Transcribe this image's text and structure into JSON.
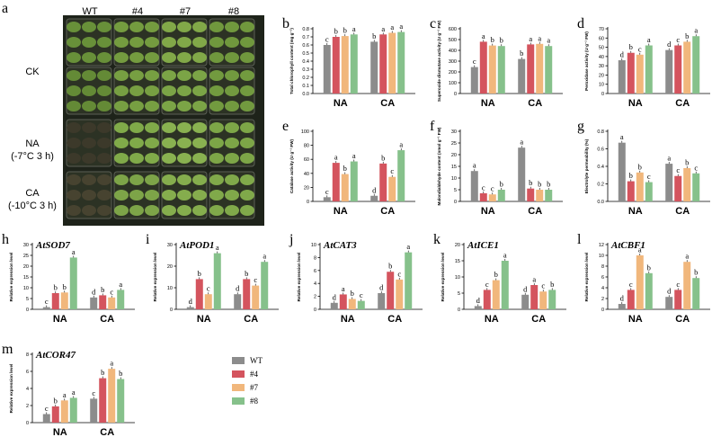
{
  "colors": {
    "WT": "#8c8c8c",
    "#4": "#d4545e",
    "#7": "#f1b77c",
    "#8": "#86c18b"
  },
  "photo": {
    "label": "a",
    "columns": [
      "WT",
      "#4",
      "#7",
      "#8"
    ],
    "rows": [
      "CK",
      "NA",
      "(-7°C 3 h)",
      "CA",
      "(-10°C 3 h)"
    ]
  },
  "legend": {
    "items": [
      {
        "name": "WT",
        "color": "#8c8c8c"
      },
      {
        "name": "#4",
        "color": "#d4545e"
      },
      {
        "name": "#7",
        "color": "#f1b77c"
      },
      {
        "name": "#8",
        "color": "#86c18b"
      }
    ]
  },
  "chart_data": [
    {
      "id": "b",
      "type": "bar",
      "ylabel": "Total chlorophyll content (mg g⁻¹)",
      "yticks": [
        0.0,
        0.1,
        0.2,
        0.3,
        0.4,
        0.5,
        0.6,
        0.7,
        0.8
      ],
      "ylim": [
        0,
        0.8
      ],
      "categories": [
        "NA",
        "CA"
      ],
      "series": [
        {
          "name": "WT",
          "values": [
            0.6,
            0.64
          ]
        },
        {
          "name": "#4",
          "values": [
            0.7,
            0.73
          ]
        },
        {
          "name": "#7",
          "values": [
            0.71,
            0.75
          ]
        },
        {
          "name": "#8",
          "values": [
            0.73,
            0.76
          ]
        }
      ],
      "sig": [
        [
          "c",
          "b",
          "b",
          "a"
        ],
        [
          "b",
          "a",
          "a",
          "a"
        ]
      ]
    },
    {
      "id": "c",
      "type": "bar",
      "ylabel": "Superoxide dismutase activity (U g⁻¹ FW)",
      "yticks": [
        0,
        100,
        200,
        300,
        400,
        500,
        600
      ],
      "ylim": [
        0,
        600
      ],
      "categories": [
        "NA",
        "CA"
      ],
      "series": [
        {
          "name": "WT",
          "values": [
            245,
            320
          ]
        },
        {
          "name": "#4",
          "values": [
            480,
            455
          ]
        },
        {
          "name": "#7",
          "values": [
            445,
            460
          ]
        },
        {
          "name": "#8",
          "values": [
            440,
            440
          ]
        }
      ],
      "sig": [
        [
          "c",
          "a",
          "b",
          "b"
        ],
        [
          "b",
          "a",
          "a",
          "a"
        ]
      ]
    },
    {
      "id": "d",
      "type": "bar",
      "ylabel": "Peroxidase activity (U g⁻¹ FW)",
      "yticks": [
        0,
        10,
        20,
        30,
        40,
        50,
        60,
        70
      ],
      "ylim": [
        0,
        70
      ],
      "categories": [
        "NA",
        "CA"
      ],
      "series": [
        {
          "name": "WT",
          "values": [
            36,
            47
          ]
        },
        {
          "name": "#4",
          "values": [
            44,
            52
          ]
        },
        {
          "name": "#7",
          "values": [
            42,
            56
          ]
        },
        {
          "name": "#8",
          "values": [
            52,
            62
          ]
        }
      ],
      "sig": [
        [
          "d",
          "b",
          "c",
          "a"
        ],
        [
          "d",
          "c",
          "b",
          "a"
        ]
      ]
    },
    {
      "id": "e",
      "type": "bar",
      "ylabel": "Catalase activity (U g⁻¹ FW)",
      "yticks": [
        0,
        20,
        40,
        60,
        80,
        100
      ],
      "ylim": [
        0,
        100
      ],
      "categories": [
        "NA",
        "CA"
      ],
      "series": [
        {
          "name": "WT",
          "values": [
            6,
            8
          ]
        },
        {
          "name": "#4",
          "values": [
            55,
            54
          ]
        },
        {
          "name": "#7",
          "values": [
            39,
            35
          ]
        },
        {
          "name": "#8",
          "values": [
            57,
            73
          ]
        }
      ],
      "sig": [
        [
          "c",
          "a",
          "b",
          "a"
        ],
        [
          "d",
          "b",
          "c",
          "a"
        ]
      ]
    },
    {
      "id": "f",
      "type": "bar",
      "ylabel": "Malondialdehyde content (nmol g⁻¹ FW)",
      "yticks": [
        0,
        5,
        10,
        15,
        20,
        25,
        30
      ],
      "ylim": [
        0,
        30
      ],
      "categories": [
        "NA",
        "CA"
      ],
      "series": [
        {
          "name": "WT",
          "values": [
            13,
            23
          ]
        },
        {
          "name": "#4",
          "values": [
            3.5,
            5.5
          ]
        },
        {
          "name": "#7",
          "values": [
            3,
            5
          ]
        },
        {
          "name": "#8",
          "values": [
            5,
            5
          ]
        }
      ],
      "sig": [
        [
          "a",
          "c",
          "c",
          "b"
        ],
        [
          "a",
          "b",
          "b",
          "b"
        ]
      ]
    },
    {
      "id": "g",
      "type": "bar",
      "ylabel": "Electrolyte permeability (%)",
      "yticks": [
        0.0,
        0.2,
        0.4,
        0.6,
        0.8
      ],
      "ylim": [
        0,
        0.8
      ],
      "categories": [
        "NA",
        "CA"
      ],
      "series": [
        {
          "name": "WT",
          "values": [
            0.67,
            0.43
          ]
        },
        {
          "name": "#4",
          "values": [
            0.23,
            0.29
          ]
        },
        {
          "name": "#7",
          "values": [
            0.33,
            0.38
          ]
        },
        {
          "name": "#8",
          "values": [
            0.22,
            0.32
          ]
        }
      ],
      "sig": [
        [
          "a",
          "b",
          "b",
          "c"
        ],
        [
          "a",
          "c",
          "b",
          "c"
        ]
      ]
    },
    {
      "id": "h",
      "type": "bar",
      "gene": "AtSOD7",
      "ylabel": "Relative expression level",
      "yticks": [
        0,
        5,
        10,
        15,
        20,
        25,
        30
      ],
      "ylim": [
        0,
        30
      ],
      "categories": [
        "NA",
        "CA"
      ],
      "series": [
        {
          "name": "WT",
          "values": [
            1,
            5.5
          ]
        },
        {
          "name": "#4",
          "values": [
            7.5,
            6.5
          ]
        },
        {
          "name": "#7",
          "values": [
            7.8,
            5.5
          ]
        },
        {
          "name": "#8",
          "values": [
            24,
            9
          ]
        }
      ],
      "sig": [
        [
          "c",
          "b",
          "b",
          "a"
        ],
        [
          "d",
          "b",
          "c",
          "a"
        ]
      ]
    },
    {
      "id": "i",
      "type": "bar",
      "gene": "AtPOD1",
      "ylabel": "Relative expression level",
      "yticks": [
        0,
        10,
        20,
        30
      ],
      "ylim": [
        0,
        30
      ],
      "categories": [
        "NA",
        "CA"
      ],
      "series": [
        {
          "name": "WT",
          "values": [
            1,
            7
          ]
        },
        {
          "name": "#4",
          "values": [
            14,
            14
          ]
        },
        {
          "name": "#7",
          "values": [
            7,
            11
          ]
        },
        {
          "name": "#8",
          "values": [
            26,
            22
          ]
        }
      ],
      "sig": [
        [
          "d",
          "b",
          "c",
          "a"
        ],
        [
          "d",
          "b",
          "c",
          "a"
        ]
      ]
    },
    {
      "id": "j",
      "type": "bar",
      "gene": "AtCAT3",
      "ylabel": "Relative expression level",
      "yticks": [
        0,
        2,
        4,
        6,
        8,
        10
      ],
      "ylim": [
        0,
        10
      ],
      "categories": [
        "NA",
        "CA"
      ],
      "series": [
        {
          "name": "WT",
          "values": [
            1,
            2.5
          ]
        },
        {
          "name": "#4",
          "values": [
            2.3,
            5.8
          ]
        },
        {
          "name": "#7",
          "values": [
            1.6,
            4.6
          ]
        },
        {
          "name": "#8",
          "values": [
            1.3,
            8.8
          ]
        }
      ],
      "sig": [
        [
          "d",
          "a",
          "b",
          "c"
        ],
        [
          "d",
          "b",
          "c",
          "a"
        ]
      ]
    },
    {
      "id": "k",
      "type": "bar",
      "gene": "AtICE1",
      "ylabel": "Relative expression level",
      "yticks": [
        0,
        5,
        10,
        15,
        20
      ],
      "ylim": [
        0,
        20
      ],
      "categories": [
        "NA",
        "CA"
      ],
      "series": [
        {
          "name": "WT",
          "values": [
            1,
            4.5
          ]
        },
        {
          "name": "#4",
          "values": [
            6,
            7.5
          ]
        },
        {
          "name": "#7",
          "values": [
            9,
            5.5
          ]
        },
        {
          "name": "#8",
          "values": [
            15,
            6
          ]
        }
      ],
      "sig": [
        [
          "d",
          "c",
          "b",
          "a"
        ],
        [
          "d",
          "a",
          "c",
          "b"
        ]
      ]
    },
    {
      "id": "l",
      "type": "bar",
      "gene": "AtCBF1",
      "ylabel": "Relative expression level",
      "yticks": [
        0,
        2,
        4,
        6,
        8,
        10,
        12
      ],
      "ylim": [
        0,
        12
      ],
      "categories": [
        "NA",
        "CA"
      ],
      "series": [
        {
          "name": "WT",
          "values": [
            1,
            2.3
          ]
        },
        {
          "name": "#4",
          "values": [
            3.6,
            3.6
          ]
        },
        {
          "name": "#7",
          "values": [
            10,
            8.8
          ]
        },
        {
          "name": "#8",
          "values": [
            6.7,
            5.8
          ]
        }
      ],
      "sig": [
        [
          "d",
          "c",
          "a",
          "b"
        ],
        [
          "d",
          "c",
          "a",
          "b"
        ]
      ]
    },
    {
      "id": "m",
      "type": "bar",
      "gene": "AtCOR47",
      "ylabel": "Relative expression level",
      "yticks": [
        0,
        2,
        4,
        6,
        8
      ],
      "ylim": [
        0,
        8
      ],
      "categories": [
        "NA",
        "CA"
      ],
      "series": [
        {
          "name": "WT",
          "values": [
            1,
            2.8
          ]
        },
        {
          "name": "#4",
          "values": [
            1.9,
            5.2
          ]
        },
        {
          "name": "#7",
          "values": [
            2.6,
            6.3
          ]
        },
        {
          "name": "#8",
          "values": [
            2.9,
            5.1
          ]
        }
      ],
      "sig": [
        [
          "c",
          "b",
          "a",
          "a"
        ],
        [
          "c",
          "b",
          "a",
          "b"
        ]
      ]
    }
  ]
}
